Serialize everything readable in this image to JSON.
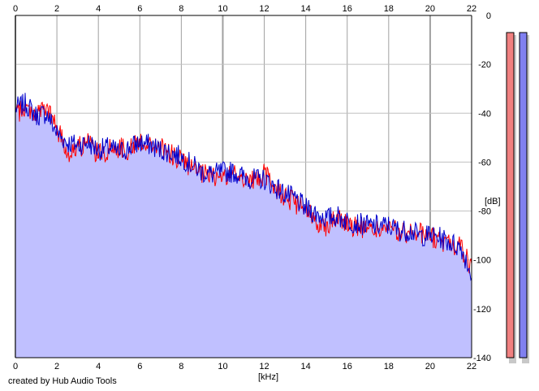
{
  "credit": "created by Hub Audio Tools",
  "chart_data": {
    "type": "area",
    "xlabel": "[kHz]",
    "ylabel": "[dB]",
    "xlim": [
      0,
      22
    ],
    "ylim": [
      -140,
      0
    ],
    "x_ticks": [
      0,
      2,
      4,
      6,
      8,
      10,
      12,
      14,
      16,
      18,
      20,
      22
    ],
    "y_ticks": [
      0,
      -20,
      -40,
      -60,
      -80,
      -100,
      -120,
      -140
    ],
    "grid": true,
    "x_axis_top_labels": true,
    "fill_color": "#c0c0ff",
    "series": [
      {
        "color": "#ff0000",
        "x": [
          0,
          0.5,
          1,
          1.5,
          2,
          2.5,
          3,
          3.5,
          4,
          4.5,
          5,
          5.5,
          6,
          6.5,
          7,
          7.5,
          8,
          8.5,
          9,
          9.5,
          10,
          10.5,
          11,
          11.5,
          12,
          12.5,
          13,
          13.5,
          14,
          14.5,
          15,
          15.5,
          16,
          16.5,
          17,
          17.5,
          18,
          18.5,
          19,
          19.5,
          20,
          20.5,
          21,
          21.5,
          22
        ],
        "values": [
          -40,
          -38,
          -40,
          -38,
          -46,
          -56,
          -54,
          -52,
          -57,
          -55,
          -54,
          -55,
          -51,
          -53,
          -54,
          -57,
          -59,
          -63,
          -65,
          -66,
          -66,
          -65,
          -66,
          -68,
          -65,
          -70,
          -74,
          -77,
          -80,
          -84,
          -86,
          -82,
          -85,
          -87,
          -87,
          -88,
          -87,
          -89,
          -89,
          -89,
          -90,
          -93,
          -93,
          -95,
          -104
        ]
      },
      {
        "color": "#0000cc",
        "x": [
          0,
          0.5,
          1,
          1.5,
          2,
          2.5,
          3,
          3.5,
          4,
          4.5,
          5,
          5.5,
          6,
          6.5,
          7,
          7.5,
          8,
          8.5,
          9,
          9.5,
          10,
          10.5,
          11,
          11.5,
          12,
          12.5,
          13,
          13.5,
          14,
          14.5,
          15,
          15.5,
          16,
          16.5,
          17,
          17.5,
          18,
          18.5,
          19,
          19.5,
          20,
          20.5,
          21,
          21.5,
          22
        ],
        "values": [
          -38,
          -36,
          -41,
          -40,
          -48,
          -52,
          -53,
          -52,
          -55,
          -54,
          -56,
          -54,
          -52,
          -53,
          -55,
          -56,
          -58,
          -61,
          -64,
          -65,
          -64,
          -64,
          -66,
          -67,
          -67,
          -70,
          -73,
          -75,
          -79,
          -81,
          -83,
          -82,
          -84,
          -85,
          -86,
          -86,
          -86,
          -88,
          -88,
          -90,
          -90,
          -91,
          -93,
          -95,
          -106
        ]
      }
    ],
    "level_meters": [
      {
        "color": "#f08080",
        "value_db": -7
      },
      {
        "color": "#8080f0",
        "value_db": -7
      }
    ]
  }
}
